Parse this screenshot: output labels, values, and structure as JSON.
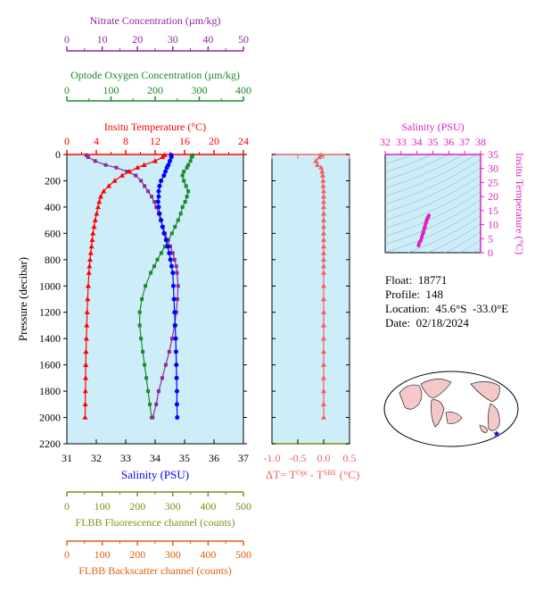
{
  "colors": {
    "temperature": "#ff0000",
    "salinity": "#0000ff",
    "nitrate": "#8b2a9a",
    "oxygen": "#1a8a2a",
    "fluorescence": "#8a8a1a",
    "backscatter": "#e06010",
    "delta_t": "#f06060",
    "ts_axis": "#e020c0",
    "plot_bg": "#cdeef8",
    "axis": "#000000"
  },
  "info": {
    "float_label": "Float:",
    "float": "18771",
    "profile_label": "Profile:",
    "profile": "148",
    "location_label": "Location:",
    "location": "45.6°S  -33.0°E",
    "date_label": "Date:",
    "date": "02/18/2024"
  },
  "chart_data": [
    {
      "type": "line",
      "title": "",
      "ylabel": "Pressure (decibar)",
      "ylim": [
        2200,
        0
      ],
      "yticks": [
        "0",
        "200",
        "400",
        "600",
        "800",
        "1000",
        "1200",
        "1400",
        "1600",
        "1800",
        "2000",
        "2200"
      ],
      "axes": {
        "temperature": {
          "label": "Insitu Temperature (°C)",
          "range": [
            0,
            24
          ],
          "ticks": [
            "0",
            "4",
            "8",
            "12",
            "16",
            "20",
            "24"
          ]
        },
        "salinity": {
          "label": "Salinity (PSU)",
          "range": [
            31,
            37
          ],
          "ticks": [
            "31",
            "32",
            "33",
            "34",
            "35",
            "36",
            "37"
          ]
        },
        "nitrate": {
          "label": "Nitrate Concentration (µm/kg)",
          "range": [
            0,
            50
          ],
          "ticks": [
            "0",
            "10",
            "20",
            "30",
            "40",
            "50"
          ]
        },
        "oxygen": {
          "label": "Optode Oxygen Concentration (µm/kg)",
          "range": [
            0,
            400
          ],
          "ticks": [
            "0",
            "100",
            "200",
            "300",
            "400"
          ]
        },
        "fluorescence": {
          "label": "FLBB Fluorescence channel (counts)",
          "range": [
            0,
            500
          ],
          "ticks": [
            "0",
            "100",
            "200",
            "300",
            "400",
            "500"
          ]
        },
        "backscatter": {
          "label": "FLBB Backscatter channel (counts)",
          "range": [
            0,
            500
          ],
          "ticks": [
            "0",
            "100",
            "200",
            "300",
            "400",
            "500"
          ]
        }
      },
      "series": [
        {
          "name": "temperature",
          "axis": "temperature",
          "marker": "triangle",
          "pressure": [
            5,
            20,
            50,
            80,
            100,
            130,
            160,
            200,
            240,
            280,
            320,
            360,
            400,
            450,
            500,
            550,
            600,
            650,
            700,
            750,
            800,
            850,
            900,
            1000,
            1100,
            1200,
            1300,
            1400,
            1500,
            1600,
            1700,
            1800,
            1900,
            2000
          ],
          "values": [
            13.3,
            13.0,
            12.0,
            10.5,
            9.6,
            8.5,
            7.5,
            6.5,
            5.7,
            5.0,
            4.6,
            4.4,
            4.25,
            4.05,
            3.85,
            3.7,
            3.55,
            3.45,
            3.35,
            3.25,
            3.15,
            3.07,
            3.0,
            2.9,
            2.82,
            2.75,
            2.7,
            2.65,
            2.6,
            2.57,
            2.55,
            2.52,
            2.5,
            2.48
          ]
        },
        {
          "name": "salinity",
          "axis": "salinity",
          "marker": "circle",
          "pressure": [
            5,
            20,
            50,
            80,
            100,
            130,
            160,
            200,
            240,
            280,
            320,
            360,
            400,
            450,
            500,
            550,
            600,
            650,
            700,
            750,
            800,
            850,
            900,
            1000,
            1100,
            1200,
            1300,
            1400,
            1500,
            1600,
            1700,
            1800,
            1900,
            2000
          ],
          "values": [
            34.55,
            34.55,
            34.5,
            34.45,
            34.4,
            34.35,
            34.3,
            34.2,
            34.15,
            34.12,
            34.12,
            34.1,
            34.12,
            34.15,
            34.2,
            34.25,
            34.3,
            34.37,
            34.43,
            34.48,
            34.52,
            34.56,
            34.6,
            34.62,
            34.64,
            34.66,
            34.68,
            34.7,
            34.71,
            34.72,
            34.73,
            34.74,
            34.74,
            34.75
          ]
        },
        {
          "name": "nitrate",
          "axis": "nitrate",
          "marker": "square",
          "pressure": [
            5,
            20,
            50,
            80,
            100,
            130,
            160,
            200,
            240,
            280,
            320,
            360,
            400,
            450,
            500,
            550,
            600,
            650,
            700,
            750,
            800,
            850,
            900,
            1000,
            1100,
            1200,
            1300,
            1400,
            1500,
            1600,
            1700,
            1800,
            1900,
            2000
          ],
          "values": [
            5.5,
            6,
            8,
            11,
            14,
            17,
            19.5,
            21,
            22,
            23,
            24,
            24.8,
            25.3,
            26,
            26.6,
            27.2,
            27.8,
            28.5,
            29.3,
            30,
            30.5,
            31,
            31.2,
            31.5,
            31.3,
            31,
            30.5,
            29.8,
            29,
            28,
            27,
            26,
            25.3,
            24.3
          ]
        },
        {
          "name": "oxygen",
          "axis": "oxygen",
          "marker": "square",
          "pressure": [
            5,
            20,
            50,
            80,
            100,
            130,
            160,
            200,
            240,
            280,
            320,
            360,
            400,
            450,
            500,
            550,
            600,
            650,
            700,
            750,
            800,
            850,
            900,
            1000,
            1100,
            1200,
            1300,
            1400,
            1500,
            1600,
            1700,
            1800,
            1900,
            2000
          ],
          "values": [
            285,
            283,
            280,
            275,
            272,
            265,
            262,
            265,
            270,
            275,
            272,
            268,
            262,
            258,
            252,
            245,
            238,
            230,
            222,
            214,
            205,
            198,
            190,
            178,
            170,
            165,
            165,
            168,
            172,
            176,
            180,
            184,
            188,
            192
          ]
        },
        {
          "name": "delta_t",
          "axis": "delta_t",
          "marker": "triangle",
          "pressure": [
            5,
            20,
            50,
            80,
            100,
            130,
            160,
            200,
            240,
            280,
            320,
            360,
            400,
            450,
            500,
            550,
            600,
            650,
            700,
            750,
            800,
            850,
            900,
            1000,
            1100,
            1200,
            1300,
            1400,
            1500,
            1600,
            1700,
            1800,
            1900,
            2000
          ],
          "values": [
            -0.05,
            -0.08,
            -0.15,
            -0.12,
            -0.05,
            -0.03,
            -0.02,
            -0.01,
            -0.01,
            0,
            0,
            0,
            0,
            0,
            0,
            0,
            0,
            0,
            0,
            0,
            0,
            0,
            0,
            0,
            0,
            0,
            0,
            0,
            0,
            0,
            0,
            0,
            0,
            0
          ]
        }
      ]
    },
    {
      "type": "line",
      "title": "",
      "xlabel": "ΔT= T",
      "xlabel_sup1": "Opt",
      "xlabel_mid": " - T",
      "xlabel_sup2": "SBE",
      "xlabel_end": " (°C)",
      "xlim": [
        -1.0,
        0.5
      ],
      "xticks": [
        "-1.0",
        "-0.5",
        "0.0",
        "0.5"
      ],
      "ylim": [
        2200,
        0
      ]
    },
    {
      "type": "scatter",
      "title": "",
      "xlabel": "Salinity (PSU)",
      "ylabel": "Insitu Temperature (°C)",
      "xlim": [
        32,
        38
      ],
      "ylim": [
        0,
        35
      ],
      "xticks": [
        "32",
        "33",
        "34",
        "35",
        "36",
        "37",
        "38"
      ],
      "yticks": [
        "0",
        "5",
        "10",
        "15",
        "20",
        "25",
        "30",
        "35"
      ],
      "series": [
        {
          "name": "ts",
          "x": [
            34.1,
            34.12,
            34.15,
            34.2,
            34.25,
            34.3,
            34.35,
            34.4,
            34.45,
            34.5,
            34.55,
            34.6,
            34.65,
            34.7,
            34.75,
            34.7,
            34.6,
            34.5,
            34.4
          ],
          "y": [
            2.5,
            3.0,
            3.5,
            4.0,
            4.5,
            5.5,
            6.5,
            7.5,
            8.5,
            9.5,
            10.5,
            11.5,
            12.2,
            12.8,
            13.3,
            12.5,
            11.0,
            9.0,
            7.0
          ]
        }
      ]
    }
  ]
}
